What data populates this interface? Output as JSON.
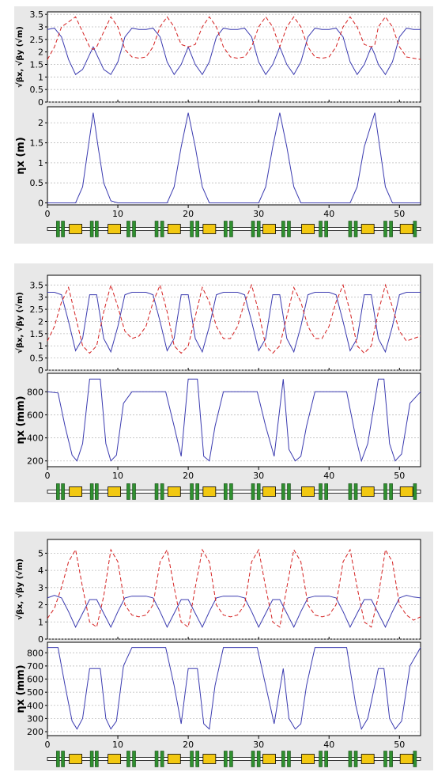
{
  "colors": {
    "panel_bg": "#e8e8e8",
    "plot_bg": "#ffffff",
    "beta_x": "#3b3bb0",
    "beta_y": "#d42020",
    "grid": "#bdbdbd",
    "quad": "#2f8f2f",
    "dipole": "#f2c811"
  },
  "x_axis": {
    "min": 0,
    "max": 53,
    "tick_labels": [
      "0",
      "10",
      "20",
      "30",
      "40",
      "50"
    ]
  },
  "beta_ylabel": "√βx, √βy (√m)",
  "panels": [
    {
      "beta_ylim": [
        0,
        3.6
      ],
      "beta_ticks": [
        "0",
        "0.5",
        "1",
        "1.5",
        "2",
        "2.5",
        "3",
        "3.5"
      ],
      "eta_ylabel": "ηx (m)",
      "eta_ylim": [
        -0.05,
        2.4
      ],
      "eta_ticks": [
        "0",
        "0.5",
        "1",
        "1.5",
        "2"
      ]
    },
    {
      "beta_ylim": [
        0,
        3.9
      ],
      "beta_ticks": [
        "0",
        "0.5",
        "1",
        "1.5",
        "2",
        "2.5",
        "3",
        "3.5"
      ],
      "eta_ylabel": "ηx (mm)",
      "eta_ylim": [
        150,
        960
      ],
      "eta_ticks": [
        "200",
        "400",
        "600",
        "800"
      ]
    },
    {
      "beta_ylim": [
        0,
        5.8
      ],
      "beta_ticks": [
        "0",
        "1",
        "2",
        "3",
        "4",
        "5"
      ],
      "eta_ylabel": "ηx (mm)",
      "eta_ylim": [
        170,
        880
      ],
      "eta_ticks": [
        "200",
        "300",
        "400",
        "500",
        "600",
        "700",
        "800"
      ]
    }
  ],
  "chart_data": [
    {
      "type": "line",
      "x": [
        0,
        1,
        2,
        3,
        4,
        5,
        6,
        6.5,
        7,
        8,
        9,
        10,
        11,
        12,
        13,
        14,
        15,
        16,
        17,
        18,
        19,
        20,
        21,
        22,
        23,
        24,
        25,
        26,
        27,
        28,
        29,
        30,
        31,
        32,
        33,
        34,
        35,
        36,
        37,
        38,
        39,
        40,
        41,
        42,
        43,
        44,
        45,
        46,
        46.5,
        47,
        48,
        49,
        50,
        51,
        52,
        53
      ],
      "series": [
        {
          "values": [
            2.9,
            2.95,
            2.6,
            1.7,
            1.1,
            1.3,
            1.9,
            2.2,
            1.9,
            1.3,
            1.1,
            1.6,
            2.6,
            2.95,
            2.9,
            2.9,
            2.95,
            2.6,
            1.6,
            1.1,
            1.5,
            2.2,
            1.5,
            1.1,
            1.6,
            2.6,
            2.95,
            2.9,
            2.9,
            2.95,
            2.6,
            1.6,
            1.1,
            1.5,
            2.2,
            1.5,
            1.1,
            1.6,
            2.6,
            2.95,
            2.9,
            2.9,
            2.95,
            2.6,
            1.6,
            1.1,
            1.5,
            2.2,
            1.9,
            1.5,
            1.1,
            1.6,
            2.6,
            2.95,
            2.9,
            2.9
          ]
        },
        {
          "values": [
            1.7,
            2.2,
            3.0,
            3.2,
            3.4,
            2.8,
            2.2,
            2.1,
            2.2,
            2.8,
            3.4,
            3.0,
            2.1,
            1.8,
            1.75,
            1.8,
            2.2,
            3.0,
            3.4,
            3.0,
            2.3,
            2.2,
            2.3,
            3.0,
            3.4,
            3.0,
            2.2,
            1.8,
            1.75,
            1.8,
            2.2,
            3.0,
            3.4,
            3.0,
            2.2,
            3.0,
            3.4,
            3.0,
            2.2,
            1.8,
            1.75,
            1.8,
            2.2,
            3.0,
            3.4,
            3.0,
            2.3,
            2.2,
            2.3,
            3.0,
            3.4,
            3.0,
            2.2,
            1.8,
            1.75,
            1.7
          ]
        }
      ],
      "eta_x": [
        0,
        4,
        5,
        5.8,
        6.5,
        7.2,
        8,
        9,
        10,
        17,
        18,
        19,
        20,
        21,
        22,
        23,
        30,
        31,
        32,
        33,
        34,
        35,
        36,
        43,
        44,
        45,
        46.5,
        47.2,
        48,
        49,
        53
      ],
      "eta_values": [
        0,
        0,
        0.4,
        1.4,
        2.25,
        1.4,
        0.5,
        0.05,
        0,
        0,
        0.4,
        1.4,
        2.25,
        1.4,
        0.4,
        0,
        0,
        0.4,
        1.4,
        2.25,
        1.4,
        0.4,
        0,
        0,
        0.4,
        1.4,
        2.25,
        1.4,
        0.4,
        0,
        0
      ]
    },
    {
      "type": "line",
      "x": [
        0,
        1,
        2,
        3,
        4,
        5,
        6,
        7,
        8,
        9,
        10,
        11,
        12,
        13,
        14,
        15,
        16,
        17,
        18,
        19,
        20,
        21,
        22,
        23,
        24,
        25,
        26,
        27,
        28,
        29,
        30,
        31,
        32,
        33,
        34,
        35,
        36,
        37,
        38,
        39,
        40,
        41,
        42,
        43,
        44,
        45,
        46,
        47,
        48,
        49,
        50,
        51,
        52,
        53
      ],
      "series": [
        {
          "values": [
            3.2,
            3.2,
            3.1,
            2.0,
            0.8,
            1.3,
            3.1,
            3.1,
            1.3,
            0.75,
            1.8,
            3.1,
            3.2,
            3.2,
            3.2,
            3.1,
            2.0,
            0.8,
            1.3,
            3.1,
            3.1,
            1.3,
            0.75,
            1.8,
            3.1,
            3.2,
            3.2,
            3.2,
            3.1,
            2.0,
            0.8,
            1.3,
            3.1,
            3.1,
            1.3,
            0.75,
            1.8,
            3.1,
            3.2,
            3.2,
            3.2,
            3.1,
            2.0,
            0.8,
            1.3,
            3.1,
            3.1,
            1.3,
            0.75,
            1.8,
            3.1,
            3.2,
            3.2,
            3.2
          ]
        },
        {
          "values": [
            1.2,
            1.8,
            2.8,
            3.4,
            2.2,
            1.0,
            0.7,
            1.0,
            2.4,
            3.5,
            2.6,
            1.6,
            1.3,
            1.4,
            1.8,
            2.8,
            3.5,
            2.4,
            1.0,
            0.7,
            1.0,
            2.2,
            3.4,
            2.8,
            1.8,
            1.3,
            1.3,
            1.8,
            2.8,
            3.5,
            2.4,
            1.0,
            0.7,
            1.0,
            2.2,
            3.4,
            2.8,
            1.8,
            1.3,
            1.3,
            1.8,
            2.8,
            3.5,
            2.4,
            1.0,
            0.7,
            1.0,
            2.4,
            3.5,
            2.6,
            1.6,
            1.2,
            1.3,
            1.4
          ]
        }
      ],
      "eta_x": [
        0,
        1.5,
        2.5,
        3.5,
        4.2,
        5,
        6,
        7.5,
        8.3,
        9,
        9.8,
        10.8,
        12,
        16.8,
        18,
        19,
        20,
        21.3,
        22.2,
        23,
        23.8,
        25,
        29.8,
        31,
        32.2,
        33.5,
        34.3,
        35.2,
        36,
        36.8,
        38,
        42.5,
        43.8,
        44.6,
        45.5,
        47,
        47.8,
        48.6,
        49.4,
        50.3,
        51.5,
        53
      ],
      "eta_values": [
        800,
        790,
        500,
        250,
        200,
        350,
        910,
        910,
        350,
        200,
        250,
        700,
        800,
        800,
        500,
        240,
        910,
        910,
        240,
        200,
        500,
        800,
        800,
        500,
        240,
        910,
        300,
        200,
        240,
        500,
        800,
        800,
        400,
        200,
        350,
        910,
        910,
        350,
        200,
        260,
        700,
        800
      ]
    },
    {
      "type": "line",
      "x": [
        0,
        1,
        2,
        3,
        4,
        5,
        6,
        7,
        8,
        9,
        10,
        11,
        12,
        13,
        14,
        15,
        16,
        17,
        18,
        19,
        20,
        21,
        22,
        23,
        24,
        25,
        26,
        27,
        28,
        29,
        30,
        31,
        32,
        33,
        34,
        35,
        36,
        37,
        38,
        39,
        40,
        41,
        42,
        43,
        44,
        45,
        46,
        47,
        48,
        49,
        50,
        51,
        52,
        53
      ],
      "series": [
        {
          "values": [
            2.4,
            2.55,
            2.4,
            1.6,
            0.7,
            1.5,
            2.3,
            2.3,
            1.5,
            0.7,
            1.6,
            2.4,
            2.5,
            2.5,
            2.5,
            2.4,
            1.6,
            0.7,
            1.5,
            2.3,
            2.3,
            1.5,
            0.7,
            1.6,
            2.4,
            2.5,
            2.5,
            2.5,
            2.4,
            1.6,
            0.7,
            1.5,
            2.3,
            2.3,
            1.5,
            0.7,
            1.6,
            2.4,
            2.5,
            2.5,
            2.5,
            2.4,
            1.6,
            0.7,
            1.5,
            2.3,
            2.3,
            1.5,
            0.7,
            1.6,
            2.4,
            2.55,
            2.45,
            2.4
          ]
        },
        {
          "values": [
            1.2,
            1.8,
            3.0,
            4.5,
            5.2,
            3.0,
            1.0,
            0.7,
            2.5,
            5.2,
            4.5,
            2.0,
            1.4,
            1.3,
            1.4,
            2.0,
            4.5,
            5.2,
            3.0,
            1.0,
            0.7,
            3.0,
            5.2,
            4.5,
            2.0,
            1.4,
            1.3,
            1.4,
            2.0,
            4.5,
            5.2,
            3.0,
            1.0,
            0.7,
            3.0,
            5.2,
            4.5,
            2.0,
            1.4,
            1.3,
            1.4,
            2.0,
            4.5,
            5.2,
            3.0,
            1.0,
            0.7,
            2.5,
            5.2,
            4.5,
            2.0,
            1.4,
            1.1,
            1.3
          ]
        }
      ],
      "eta_x": [
        0,
        1.5,
        2.5,
        3.5,
        4.2,
        5,
        6,
        7.5,
        8.3,
        9,
        9.8,
        10.8,
        12,
        16.8,
        18,
        19,
        20,
        21.3,
        22.2,
        23,
        23.8,
        25,
        29.8,
        31,
        32.2,
        33.5,
        34.3,
        35.2,
        36,
        36.8,
        38,
        42.5,
        43.8,
        44.6,
        45.5,
        47,
        47.8,
        48.6,
        49.4,
        50.3,
        51.5,
        53
      ],
      "eta_values": [
        840,
        840,
        550,
        280,
        220,
        300,
        680,
        680,
        300,
        220,
        280,
        700,
        840,
        840,
        550,
        260,
        680,
        680,
        260,
        220,
        550,
        840,
        840,
        550,
        260,
        680,
        300,
        220,
        260,
        550,
        840,
        840,
        400,
        220,
        300,
        680,
        680,
        300,
        220,
        280,
        700,
        840
      ]
    }
  ],
  "lattice": {
    "dipoles": [
      4,
      9.5,
      18,
      23,
      31.5,
      37,
      45.5,
      51
    ],
    "quads": [
      1.5,
      2.2,
      6.3,
      7.0,
      11.5,
      12.3,
      15.5,
      16.3,
      20.5,
      21.3,
      25.3,
      26.1,
      29.2,
      30,
      33.5,
      34.3,
      38.8,
      39.6,
      43,
      43.8,
      48,
      48.8,
      52.2
    ]
  }
}
